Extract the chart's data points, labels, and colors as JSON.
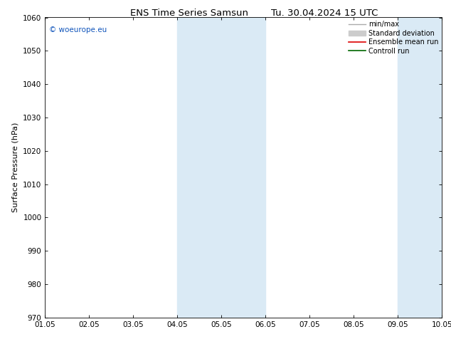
{
  "title": "ENS Time Series Samsun",
  "title2": "Tu. 30.04.2024 15 UTC",
  "ylabel": "Surface Pressure (hPa)",
  "ylim": [
    970,
    1060
  ],
  "yticks": [
    970,
    980,
    990,
    1000,
    1010,
    1020,
    1030,
    1040,
    1050,
    1060
  ],
  "xlim": [
    0,
    9
  ],
  "xtick_labels": [
    "01.05",
    "02.05",
    "03.05",
    "04.05",
    "05.05",
    "06.05",
    "07.05",
    "08.05",
    "09.05",
    "10.05"
  ],
  "shaded_regions": [
    {
      "xmin": 3.0,
      "xmax": 4.0
    },
    {
      "xmin": 4.0,
      "xmax": 5.0
    },
    {
      "xmin": 8.0,
      "xmax": 9.0
    }
  ],
  "shade_color": "#daeaf5",
  "legend_entries": [
    {
      "label": "min/max",
      "color": "#aaaaaa",
      "lw": 1.0,
      "style": "line"
    },
    {
      "label": "Standard deviation",
      "color": "#cccccc",
      "lw": 5,
      "style": "band"
    },
    {
      "label": "Ensemble mean run",
      "color": "#dd0000",
      "lw": 1.2,
      "style": "line"
    },
    {
      "label": "Controll run",
      "color": "#006600",
      "lw": 1.2,
      "style": "line"
    }
  ],
  "copyright_text": "© woeurope.eu",
  "copyright_color": "#1155bb",
  "bg_color": "#ffffff",
  "plot_bg": "#ffffff",
  "title_fontsize": 9.5,
  "ylabel_fontsize": 8,
  "tick_fontsize": 7.5,
  "legend_fontsize": 7,
  "copyright_fontsize": 7.5
}
